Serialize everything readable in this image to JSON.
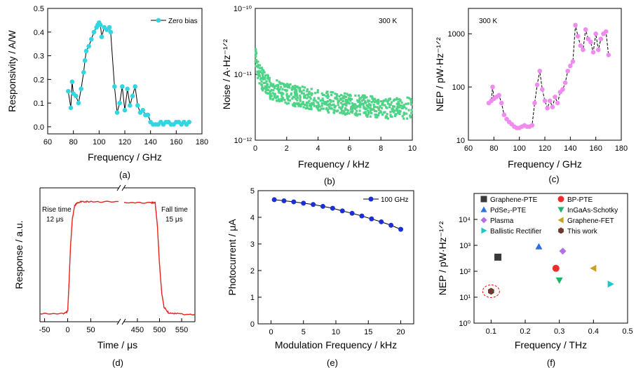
{
  "chart_data": [
    {
      "id": "a",
      "type": "line",
      "panel_label": "(a)",
      "xlabel": "Frequency / GHz",
      "ylabel": "Responsivity / A/W",
      "xlim": [
        60,
        180
      ],
      "ylim": [
        -0.03,
        0.5
      ],
      "xticks": [
        "60",
        "80",
        "100",
        "120",
        "140",
        "160",
        "180"
      ],
      "yticks": [
        "0.0",
        "0.1",
        "0.2",
        "0.3",
        "0.4",
        "0.5"
      ],
      "legend_position": "top-right",
      "series": [
        {
          "name": "Zero bias",
          "marker_color": "#33d6e0",
          "line_color": "#000000",
          "x": [
            76,
            78,
            79,
            80,
            82,
            84,
            86,
            88,
            89,
            90,
            92,
            94,
            96,
            98,
            99,
            100,
            101,
            102,
            104,
            106,
            108,
            109,
            112,
            114,
            116,
            118,
            120,
            122,
            124,
            126,
            128,
            130,
            132,
            134,
            136,
            138,
            140,
            142,
            144,
            146,
            148,
            150,
            152,
            154,
            156,
            158,
            160,
            162,
            164,
            166,
            168,
            170
          ],
          "y": [
            0.15,
            0.08,
            0.19,
            0.14,
            0.13,
            0.1,
            0.16,
            0.23,
            0.28,
            0.32,
            0.34,
            0.37,
            0.4,
            0.42,
            0.43,
            0.44,
            0.43,
            0.38,
            0.42,
            0.41,
            0.42,
            0.4,
            0.17,
            0.06,
            0.1,
            0.17,
            0.07,
            0.16,
            0.09,
            0.13,
            0.17,
            0.09,
            0.06,
            0.07,
            0.05,
            0.05,
            0.02,
            0.01,
            0.01,
            0.01,
            0.02,
            0.01,
            0.02,
            0.02,
            0.01,
            0.01,
            0.02,
            0.02,
            0.01,
            0.02,
            0.01,
            0.02
          ]
        }
      ]
    },
    {
      "id": "b",
      "type": "scatter",
      "panel_label": "(b)",
      "xlabel": "Frequency / kHz",
      "ylabel": "Noise / A·Hz⁻¹ᐟ²",
      "xlim": [
        0,
        10
      ],
      "ylim": [
        1e-12,
        1e-10
      ],
      "yscale": "log",
      "xticks": [
        "0",
        "2",
        "4",
        "6",
        "8",
        "10"
      ],
      "yticks": [
        "10⁻¹²",
        "10⁻¹¹",
        "10⁻¹⁰"
      ],
      "annotation": "300 K",
      "color": "#4ed387",
      "trend_note": "noise density decays from ~1.8e-11 near 0 kHz to ~3e-12 at 10 kHz",
      "series": [
        {
          "name": "",
          "x": [
            0.05,
            0.2,
            0.5,
            1,
            2,
            3,
            4,
            5,
            6,
            7,
            8,
            9,
            10
          ],
          "y": [
            1.8e-11,
            1.1e-11,
            8e-12,
            6e-12,
            5e-12,
            4.5e-12,
            4e-12,
            3.7e-12,
            3.5e-12,
            3.3e-12,
            3.1e-12,
            3e-12,
            3.1e-12
          ]
        }
      ]
    },
    {
      "id": "c",
      "type": "line",
      "panel_label": "(c)",
      "xlabel": "Frequency / GHz",
      "ylabel": "NEP / pW·Hz⁻¹ᐟ²",
      "xlim": [
        60,
        180
      ],
      "ylim": [
        10,
        3000
      ],
      "yscale": "log",
      "xticks": [
        "60",
        "80",
        "100",
        "120",
        "140",
        "160",
        "180"
      ],
      "yticks": [
        "10",
        "100",
        "1000"
      ],
      "annotation": "300 K",
      "series": [
        {
          "name": "",
          "marker_color": "#f08cf0",
          "line_color": "#000000",
          "x": [
            76,
            78,
            79,
            80,
            82,
            84,
            86,
            88,
            90,
            92,
            94,
            96,
            98,
            100,
            102,
            104,
            106,
            108,
            110,
            112,
            114,
            116,
            118,
            120,
            122,
            124,
            126,
            128,
            130,
            132,
            134,
            136,
            138,
            140,
            142,
            144,
            146,
            148,
            150,
            152,
            154,
            156,
            158,
            160,
            162,
            164,
            166,
            168,
            170
          ],
          "y": [
            50,
            55,
            100,
            60,
            65,
            70,
            50,
            30,
            25,
            22,
            20,
            18,
            17,
            17,
            18,
            19,
            18,
            18,
            19,
            50,
            110,
            200,
            90,
            55,
            40,
            55,
            42,
            65,
            50,
            80,
            90,
            120,
            200,
            250,
            300,
            1450,
            900,
            600,
            500,
            1200,
            800,
            700,
            450,
            1000,
            500,
            800,
            1000,
            1100,
            400
          ]
        }
      ]
    },
    {
      "id": "d",
      "type": "line",
      "panel_label": "(d)",
      "xlabel": "Time / μs",
      "ylabel": "Response / a.u.",
      "broken_x_axis": true,
      "xticks": [
        "-50",
        "0",
        "50",
        "450",
        "500",
        "550"
      ],
      "annotations": [
        "Rise time",
        "12 μs",
        "Fall time",
        "15 μs"
      ],
      "color": "#e8221a",
      "segments": [
        {
          "x": [
            -60,
            -10,
            0,
            3,
            6,
            10,
            15,
            20,
            30,
            50,
            110
          ],
          "y": [
            0.02,
            0.02,
            0.04,
            0.3,
            0.6,
            0.85,
            0.96,
            0.99,
            1.0,
            1.0,
            1.0
          ]
        },
        {
          "x": [
            420,
            480,
            490,
            495,
            500,
            505,
            510,
            520,
            540,
            580
          ],
          "y": [
            0.99,
            0.99,
            0.99,
            0.8,
            0.45,
            0.2,
            0.08,
            0.03,
            0.02,
            0.01
          ]
        }
      ]
    },
    {
      "id": "e",
      "type": "line",
      "panel_label": "(e)",
      "xlabel": "Modulation Frequency / kHz",
      "ylabel": "Photocurrent / μA",
      "xlim": [
        -2,
        22
      ],
      "ylim": [
        0,
        5
      ],
      "xticks": [
        "0",
        "5",
        "10",
        "15",
        "20"
      ],
      "yticks": [
        "0",
        "1",
        "2",
        "3",
        "4",
        "5"
      ],
      "legend_position": "top-right",
      "series": [
        {
          "name": "100 GHz",
          "marker_color": "#1a2fd6",
          "line_color": "#000000",
          "x": [
            0.5,
            2,
            3.5,
            5,
            6.5,
            8,
            9.5,
            11,
            12.5,
            14,
            15.5,
            17,
            18.5,
            20
          ],
          "y": [
            4.66,
            4.62,
            4.58,
            4.53,
            4.48,
            4.41,
            4.34,
            4.24,
            4.15,
            4.05,
            3.94,
            3.83,
            3.7,
            3.55
          ]
        }
      ]
    },
    {
      "id": "f",
      "type": "scatter",
      "panel_label": "(f)",
      "xlabel": "Frequency / THz",
      "ylabel": "NEP / pW·Hz⁻¹ᐟ²",
      "xlim": [
        0.05,
        0.5
      ],
      "ylim": [
        1,
        100000
      ],
      "yscale": "log",
      "xticks": [
        "0.1",
        "0.2",
        "0.3",
        "0.4",
        "0.5"
      ],
      "yticks": [
        "10⁰",
        "10¹",
        "10²",
        "10³",
        "10⁴"
      ],
      "legend_position": "top",
      "series": [
        {
          "name": "Graphene-PTE",
          "marker": "square",
          "color": "#3a3a3a",
          "x": [
            0.12
          ],
          "y": [
            350
          ]
        },
        {
          "name": "BP-PTE",
          "marker": "circle",
          "color": "#ee2e2e",
          "x": [
            0.29
          ],
          "y": [
            130
          ]
        },
        {
          "name": "PdSe₂-PTE",
          "marker": "triangle-up",
          "color": "#2c6fe0",
          "x": [
            0.24
          ],
          "y": [
            900
          ]
        },
        {
          "name": "InGaAs-Schotky",
          "marker": "triangle-down",
          "color": "#1fb56a",
          "x": [
            0.3
          ],
          "y": [
            45
          ]
        },
        {
          "name": "Plasma",
          "marker": "diamond",
          "color": "#b46fe8",
          "x": [
            0.31
          ],
          "y": [
            600
          ]
        },
        {
          "name": "Graphene-FET",
          "marker": "triangle-left",
          "color": "#c9a020",
          "x": [
            0.4
          ],
          "y": [
            130
          ]
        },
        {
          "name": "Ballistic Rectifier",
          "marker": "triangle-right",
          "color": "#1ec8c8",
          "x": [
            0.45
          ],
          "y": [
            32
          ]
        },
        {
          "name": "This work",
          "marker": "hexagon",
          "color": "#6b3b30",
          "label_color": "#e01010",
          "x": [
            0.1
          ],
          "y": [
            17
          ]
        }
      ]
    }
  ]
}
